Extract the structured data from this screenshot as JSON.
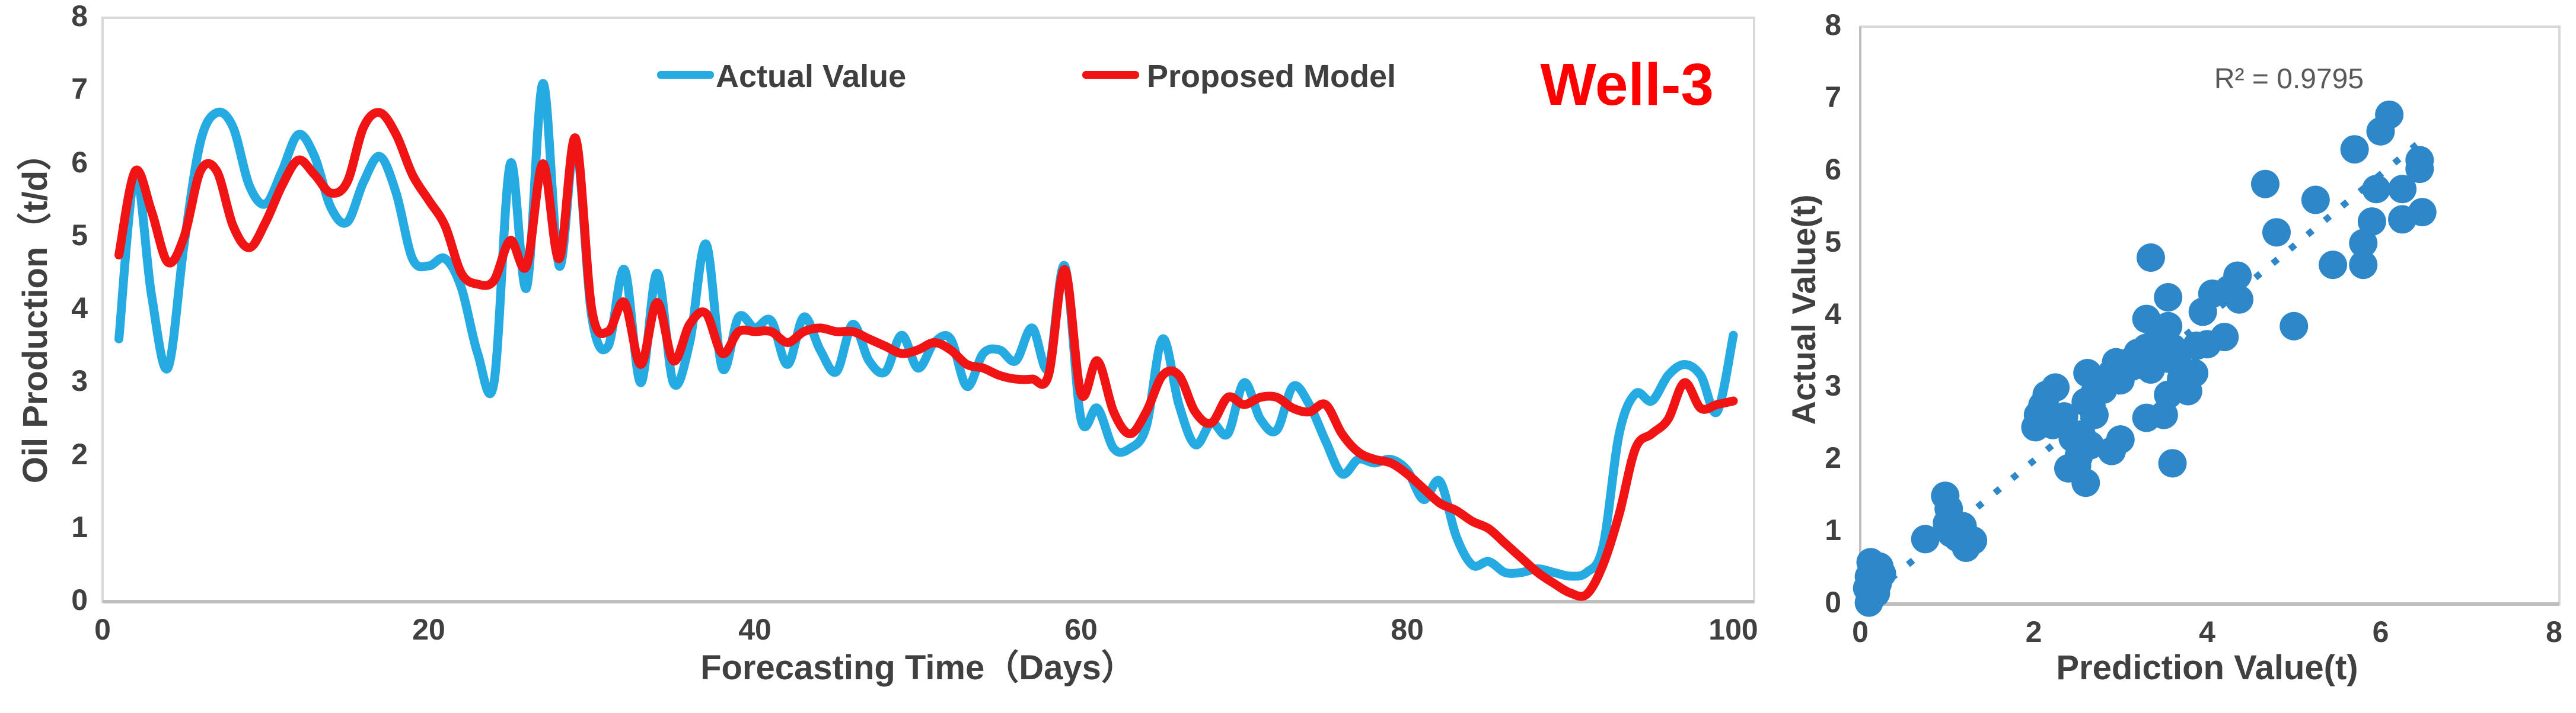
{
  "colors": {
    "actual_line": "#25AAE1",
    "model_line": "#F01414",
    "scatter_point": "#2E87C9",
    "trend_line": "#2E87C9",
    "text_dark": "#404040",
    "text_gray": "#595959",
    "frame": "#D9D9D9",
    "axis_line": "#BFBFBF",
    "well_label": "#FF0000"
  },
  "chart_data": [
    {
      "type": "line",
      "annotation": "Well-3",
      "xlabel": "Forecasting Time（Days）",
      "ylabel": "Oil Production（t/d）",
      "xlim": [
        0,
        100
      ],
      "ylim": [
        0,
        8
      ],
      "xticks": [
        0,
        20,
        40,
        60,
        80,
        100
      ],
      "yticks": [
        0,
        1,
        2,
        3,
        4,
        5,
        6,
        7,
        8
      ],
      "grid": false,
      "legend_position": "top-center",
      "x": [
        1,
        2,
        3,
        4,
        5,
        6,
        7,
        8,
        9,
        10,
        11,
        12,
        13,
        14,
        15,
        16,
        17,
        18,
        19,
        20,
        21,
        22,
        23,
        24,
        25,
        26,
        27,
        28,
        29,
        30,
        31,
        32,
        33,
        34,
        35,
        36,
        37,
        38,
        39,
        40,
        41,
        42,
        43,
        44,
        45,
        46,
        47,
        48,
        49,
        50,
        51,
        52,
        53,
        54,
        55,
        56,
        57,
        58,
        59,
        60,
        61,
        62,
        63,
        64,
        65,
        66,
        67,
        68,
        69,
        70,
        71,
        72,
        73,
        74,
        75,
        76,
        77,
        78,
        79,
        80,
        81,
        82,
        83,
        84,
        85,
        86,
        87,
        88,
        89,
        90,
        91,
        92,
        93,
        94,
        95,
        96,
        97,
        98,
        99,
        100
      ],
      "series": [
        {
          "name": "Actual Value",
          "color_key": "actual_line",
          "values": [
            3.6,
            5.85,
            4.2,
            3.2,
            4.9,
            6.3,
            6.7,
            6.5,
            5.7,
            5.45,
            5.9,
            6.4,
            6.1,
            5.4,
            5.2,
            5.75,
            6.1,
            5.6,
            4.7,
            4.6,
            4.7,
            4.3,
            3.4,
            3.0,
            6.0,
            4.3,
            7.1,
            4.6,
            6.3,
            3.9,
            3.5,
            4.55,
            3.0,
            4.5,
            3.0,
            3.55,
            4.9,
            3.2,
            3.9,
            3.75,
            3.85,
            3.25,
            3.9,
            3.45,
            3.15,
            3.8,
            3.3,
            3.15,
            3.65,
            3.2,
            3.55,
            3.6,
            2.95,
            3.4,
            3.45,
            3.3,
            3.75,
            3.2,
            4.6,
            2.5,
            2.65,
            2.1,
            2.1,
            2.4,
            3.6,
            2.7,
            2.15,
            2.45,
            2.3,
            3.0,
            2.5,
            2.35,
            2.95,
            2.7,
            2.2,
            1.75,
            1.95,
            1.9,
            1.95,
            1.8,
            1.4,
            1.65,
            0.9,
            0.5,
            0.55,
            0.4,
            0.4,
            0.45,
            0.4,
            0.35,
            0.4,
            0.75,
            2.3,
            2.85,
            2.75,
            3.1,
            3.25,
            3.1,
            2.6,
            3.65
          ]
        },
        {
          "name": "Proposed Model",
          "color_key": "model_line",
          "values": [
            4.75,
            5.9,
            5.35,
            4.65,
            5.0,
            5.9,
            5.9,
            5.15,
            4.85,
            5.2,
            5.7,
            6.05,
            5.85,
            5.6,
            5.75,
            6.5,
            6.7,
            6.4,
            5.85,
            5.5,
            5.15,
            4.5,
            4.35,
            4.4,
            4.95,
            4.6,
            6.0,
            4.7,
            6.35,
            4.0,
            3.7,
            4.1,
            3.25,
            4.1,
            3.3,
            3.8,
            3.95,
            3.4,
            3.7,
            3.7,
            3.7,
            3.55,
            3.7,
            3.75,
            3.7,
            3.7,
            3.6,
            3.5,
            3.4,
            3.45,
            3.55,
            3.45,
            3.25,
            3.2,
            3.1,
            3.05,
            3.05,
            3.1,
            4.55,
            2.85,
            3.3,
            2.6,
            2.3,
            2.6,
            3.1,
            3.1,
            2.6,
            2.45,
            2.8,
            2.7,
            2.8,
            2.8,
            2.65,
            2.6,
            2.7,
            2.3,
            2.05,
            1.95,
            1.9,
            1.75,
            1.55,
            1.35,
            1.25,
            1.1,
            1.0,
            0.8,
            0.6,
            0.4,
            0.25,
            0.12,
            0.1,
            0.5,
            1.2,
            2.1,
            2.3,
            2.5,
            3.0,
            2.65,
            2.7,
            2.75
          ]
        }
      ]
    },
    {
      "type": "scatter",
      "annotation": "R² = 0.9795",
      "xlabel": "Prediction Value(t)",
      "ylabel": "Actual  Value(t)",
      "xlim": [
        0,
        8
      ],
      "ylim": [
        0,
        8
      ],
      "xticks": [
        0,
        2,
        4,
        6,
        8
      ],
      "yticks": [
        0,
        1,
        2,
        3,
        4,
        5,
        6,
        7,
        8
      ],
      "grid": false,
      "points": [
        [
          0.1,
          0.02
        ],
        [
          0.12,
          0.1
        ],
        [
          0.08,
          0.22
        ],
        [
          0.15,
          0.3
        ],
        [
          0.1,
          0.38
        ],
        [
          0.18,
          0.15
        ],
        [
          0.2,
          0.28
        ],
        [
          0.16,
          0.45
        ],
        [
          0.22,
          0.52
        ],
        [
          0.12,
          0.58
        ],
        [
          0.25,
          0.42
        ],
        [
          0.75,
          0.9
        ],
        [
          0.98,
          1.5
        ],
        [
          1.02,
          1.32
        ],
        [
          1.0,
          1.12
        ],
        [
          1.05,
          0.98
        ],
        [
          1.1,
          1.05
        ],
        [
          1.12,
          0.92
        ],
        [
          1.18,
          1.08
        ],
        [
          1.2,
          0.95
        ],
        [
          1.22,
          0.78
        ],
        [
          1.3,
          0.88
        ],
        [
          2.02,
          2.45
        ],
        [
          2.05,
          2.62
        ],
        [
          2.1,
          2.5
        ],
        [
          2.1,
          2.75
        ],
        [
          2.15,
          2.9
        ],
        [
          2.2,
          2.62
        ],
        [
          2.22,
          2.48
        ],
        [
          2.3,
          2.52
        ],
        [
          2.25,
          3.0
        ],
        [
          2.35,
          2.6
        ],
        [
          2.4,
          1.88
        ],
        [
          2.5,
          1.92
        ],
        [
          2.52,
          2.05
        ],
        [
          2.6,
          1.68
        ],
        [
          2.45,
          2.3
        ],
        [
          2.55,
          2.35
        ],
        [
          2.65,
          2.2
        ],
        [
          2.6,
          2.8
        ],
        [
          2.7,
          2.92
        ],
        [
          2.75,
          3.08
        ],
        [
          2.8,
          2.97
        ],
        [
          2.85,
          3.12
        ],
        [
          2.9,
          3.2
        ],
        [
          2.95,
          3.35
        ],
        [
          3.0,
          3.1
        ],
        [
          2.7,
          2.62
        ],
        [
          2.62,
          3.2
        ],
        [
          2.9,
          2.12
        ],
        [
          3.0,
          2.28
        ],
        [
          3.1,
          3.35
        ],
        [
          3.15,
          3.3
        ],
        [
          3.2,
          3.48
        ],
        [
          3.25,
          3.38
        ],
        [
          3.3,
          3.55
        ],
        [
          3.35,
          3.42
        ],
        [
          3.4,
          3.62
        ],
        [
          3.45,
          3.52
        ],
        [
          3.5,
          3.58
        ],
        [
          3.55,
          3.4
        ],
        [
          3.6,
          3.55
        ],
        [
          3.3,
          3.3
        ],
        [
          3.45,
          3.75
        ],
        [
          3.55,
          3.85
        ],
        [
          3.35,
          3.25
        ],
        [
          3.3,
          2.58
        ],
        [
          3.5,
          2.62
        ],
        [
          3.55,
          2.9
        ],
        [
          3.6,
          1.95
        ],
        [
          3.35,
          4.8
        ],
        [
          3.3,
          3.95
        ],
        [
          3.55,
          4.25
        ],
        [
          3.65,
          3.4
        ],
        [
          3.7,
          3.12
        ],
        [
          3.78,
          2.95
        ],
        [
          3.85,
          3.2
        ],
        [
          3.88,
          3.58
        ],
        [
          4.0,
          3.6
        ],
        [
          4.2,
          3.7
        ],
        [
          5.0,
          3.85
        ],
        [
          4.06,
          4.3
        ],
        [
          4.25,
          4.36
        ],
        [
          4.37,
          4.22
        ],
        [
          4.35,
          4.55
        ],
        [
          3.95,
          4.05
        ],
        [
          4.67,
          5.82
        ],
        [
          5.25,
          5.6
        ],
        [
          4.8,
          5.15
        ],
        [
          5.45,
          4.7
        ],
        [
          5.8,
          4.7
        ],
        [
          5.8,
          5.0
        ],
        [
          5.9,
          5.3
        ],
        [
          6.25,
          5.33
        ],
        [
          6.48,
          5.43
        ],
        [
          5.95,
          5.75
        ],
        [
          6.25,
          5.75
        ],
        [
          5.7,
          6.3
        ],
        [
          6.0,
          6.55
        ],
        [
          6.1,
          6.78
        ],
        [
          6.45,
          6.15
        ],
        [
          6.45,
          6.03
        ]
      ],
      "trendline": {
        "style": "dotted",
        "x1": 0.15,
        "y1": 0.15,
        "x2": 6.5,
        "y2": 6.45
      }
    }
  ]
}
